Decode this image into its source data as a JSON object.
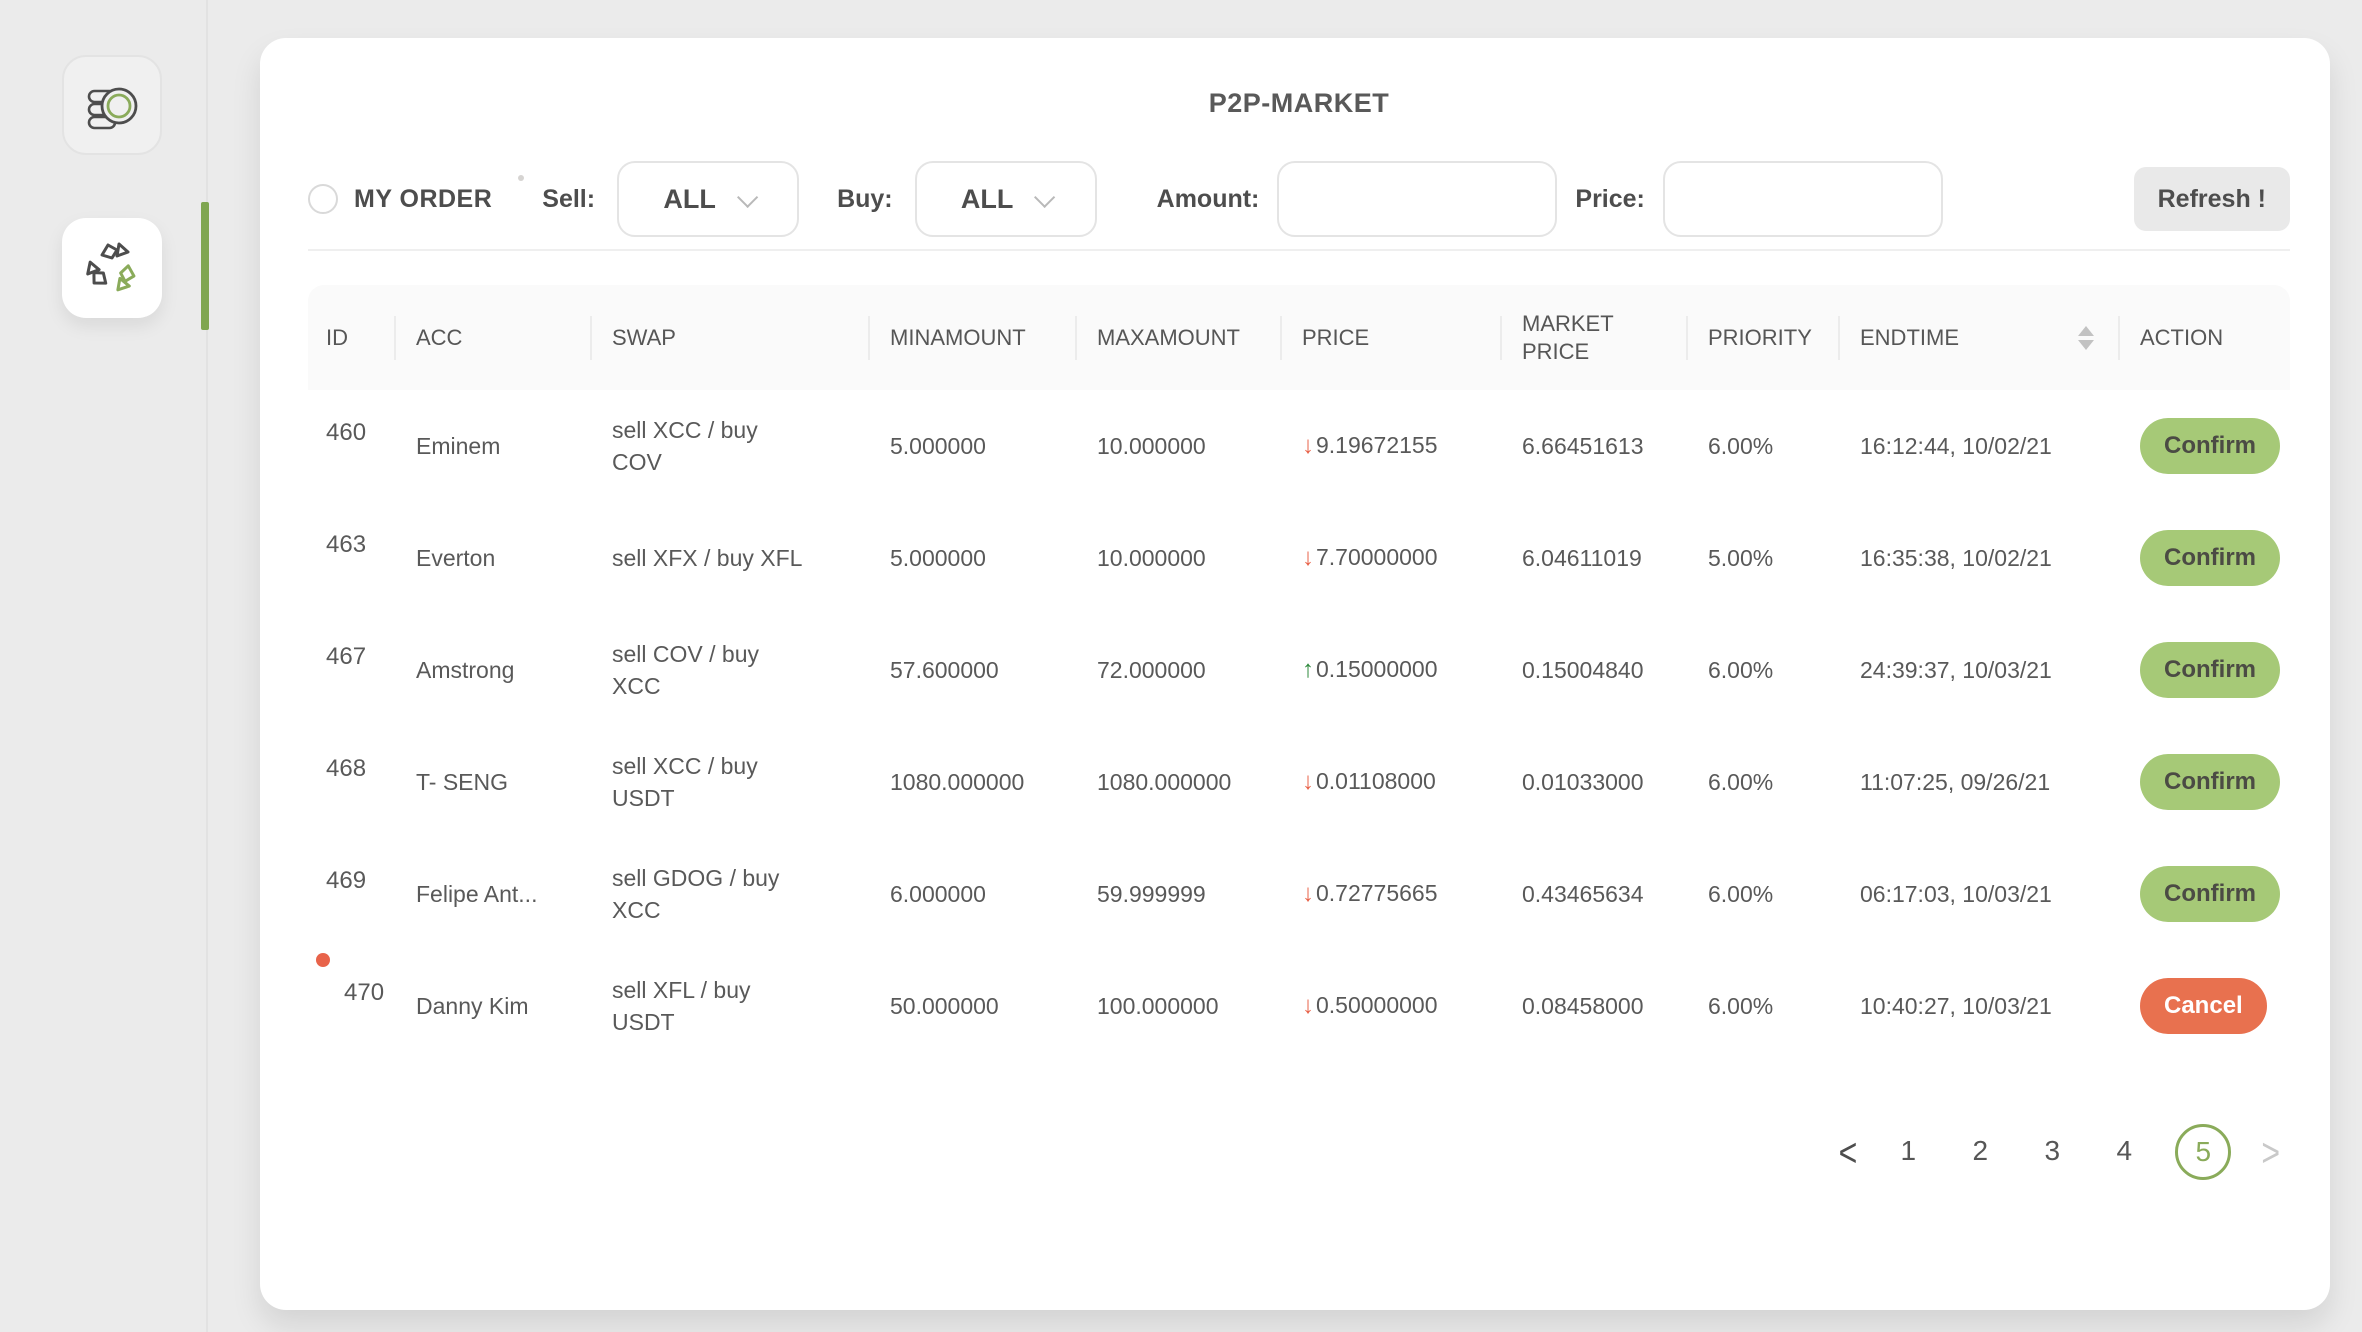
{
  "header": {
    "title": "P2P-MARKET"
  },
  "sidebar": {
    "items": [
      {
        "name": "coins",
        "icon": "coins-icon",
        "active": false
      },
      {
        "name": "p2p-swap",
        "icon": "recycle-swap-icon",
        "active": true
      }
    ]
  },
  "filters": {
    "my_order_label": "MY ORDER",
    "sell_label": "Sell:",
    "sell_value": "ALL",
    "buy_label": "Buy:",
    "buy_value": "ALL",
    "amount_label": "Amount:",
    "amount_value": "",
    "price_label": "Price:",
    "price_value": "",
    "refresh_label": "Refresh !"
  },
  "icons": {
    "arrow_up": "↑",
    "arrow_down": "↓"
  },
  "table": {
    "columns": [
      "ID",
      "ACC",
      "SWAP",
      "MINAMOUNT",
      "MAXAMOUNT",
      "PRICE",
      "MARKET PRICE",
      "PRIORITY",
      "ENDTIME",
      "ACTION"
    ],
    "rows": [
      {
        "id": "460",
        "acc": "Eminem",
        "swap": "sell XCC / buy COV",
        "min": "5.000000",
        "max": "10.000000",
        "price": "9.19672155",
        "price_dir": "down",
        "market": "6.66451613",
        "priority": "6.00%",
        "endtime": "16:12:44, 10/02/21",
        "action": "Confirm",
        "has_dot": false
      },
      {
        "id": "463",
        "acc": "Everton",
        "swap": "sell XFX / buy XFL",
        "min": "5.000000",
        "max": "10.000000",
        "price": "7.70000000",
        "price_dir": "down",
        "market": "6.04611019",
        "priority": "5.00%",
        "endtime": "16:35:38, 10/02/21",
        "action": "Confirm",
        "has_dot": false
      },
      {
        "id": "467",
        "acc": "Amstrong",
        "swap": "sell COV / buy XCC",
        "min": "57.600000",
        "max": "72.000000",
        "price": "0.15000000",
        "price_dir": "up",
        "market": "0.15004840",
        "priority": "6.00%",
        "endtime": "24:39:37, 10/03/21",
        "action": "Confirm",
        "has_dot": false
      },
      {
        "id": "468",
        "acc": "T- SENG",
        "swap": "sell XCC / buy USDT",
        "min": "1080.000000",
        "max": "1080.000000",
        "price": "0.01108000",
        "price_dir": "down",
        "market": "0.01033000",
        "priority": "6.00%",
        "endtime": "11:07:25, 09/26/21",
        "action": "Confirm",
        "has_dot": false
      },
      {
        "id": "469",
        "acc": "Felipe Ant...",
        "swap": "sell GDOG / buy XCC",
        "min": "6.000000",
        "max": "59.999999",
        "price": "0.72775665",
        "price_dir": "down",
        "market": "0.43465634",
        "priority": "6.00%",
        "endtime": "06:17:03, 10/03/21",
        "action": "Confirm",
        "has_dot": false
      },
      {
        "id": "470",
        "acc": "Danny Kim",
        "swap": "sell XFL / buy USDT",
        "min": "50.000000",
        "max": "100.000000",
        "price": "0.50000000",
        "price_dir": "down",
        "market": "0.08458000",
        "priority": "6.00%",
        "endtime": "10:40:27, 10/03/21",
        "action": "Cancel",
        "has_dot": true
      }
    ]
  },
  "pagination": {
    "prev": "<",
    "pages": [
      "1",
      "2",
      "3",
      "4",
      "5"
    ],
    "active": "5",
    "next": ">"
  },
  "colors": {
    "accent_green": "#7fa650",
    "confirm_bg": "#a6c977",
    "cancel_bg": "#e8714f",
    "arrow_up": "#2f8a3d",
    "arrow_down": "#e8634a",
    "new_order_dot": "#e8634a",
    "text": "#595959",
    "page_bg": "#ebebeb"
  }
}
